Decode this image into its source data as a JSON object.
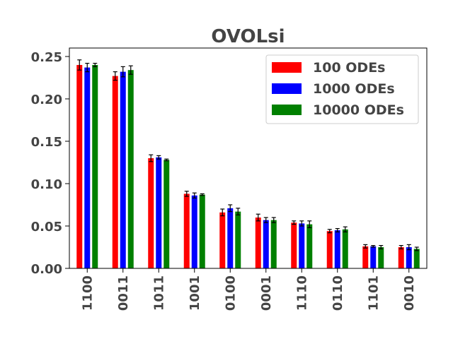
{
  "chart_data": {
    "type": "bar",
    "title": "OVOLsi",
    "xlabel": "",
    "ylabel": "",
    "ylim": [
      0,
      0.26
    ],
    "yticks": [
      "0.00",
      "0.05",
      "0.10",
      "0.15",
      "0.20",
      "0.25"
    ],
    "categories": [
      "1100",
      "0011",
      "1011",
      "1001",
      "0100",
      "0001",
      "1110",
      "0110",
      "1101",
      "0010"
    ],
    "series": [
      {
        "name": "100 ODEs",
        "color": "#ff0000",
        "values": [
          0.24,
          0.227,
          0.13,
          0.088,
          0.066,
          0.06,
          0.054,
          0.044,
          0.026,
          0.025
        ],
        "errors": [
          0.006,
          0.005,
          0.004,
          0.003,
          0.004,
          0.004,
          0.002,
          0.002,
          0.002,
          0.002
        ]
      },
      {
        "name": "1000 ODEs",
        "color": "#0000ff",
        "values": [
          0.237,
          0.232,
          0.131,
          0.086,
          0.071,
          0.057,
          0.053,
          0.045,
          0.026,
          0.025
        ],
        "errors": [
          0.005,
          0.006,
          0.002,
          0.003,
          0.004,
          0.003,
          0.003,
          0.002,
          0.001,
          0.003
        ]
      },
      {
        "name": "10000 ODEs",
        "color": "#008000",
        "values": [
          0.24,
          0.234,
          0.128,
          0.087,
          0.067,
          0.057,
          0.052,
          0.046,
          0.025,
          0.023
        ],
        "errors": [
          0.002,
          0.005,
          0.001,
          0.001,
          0.004,
          0.003,
          0.004,
          0.003,
          0.002,
          0.002
        ]
      }
    ],
    "legend_position": "top-right",
    "grid": false
  }
}
